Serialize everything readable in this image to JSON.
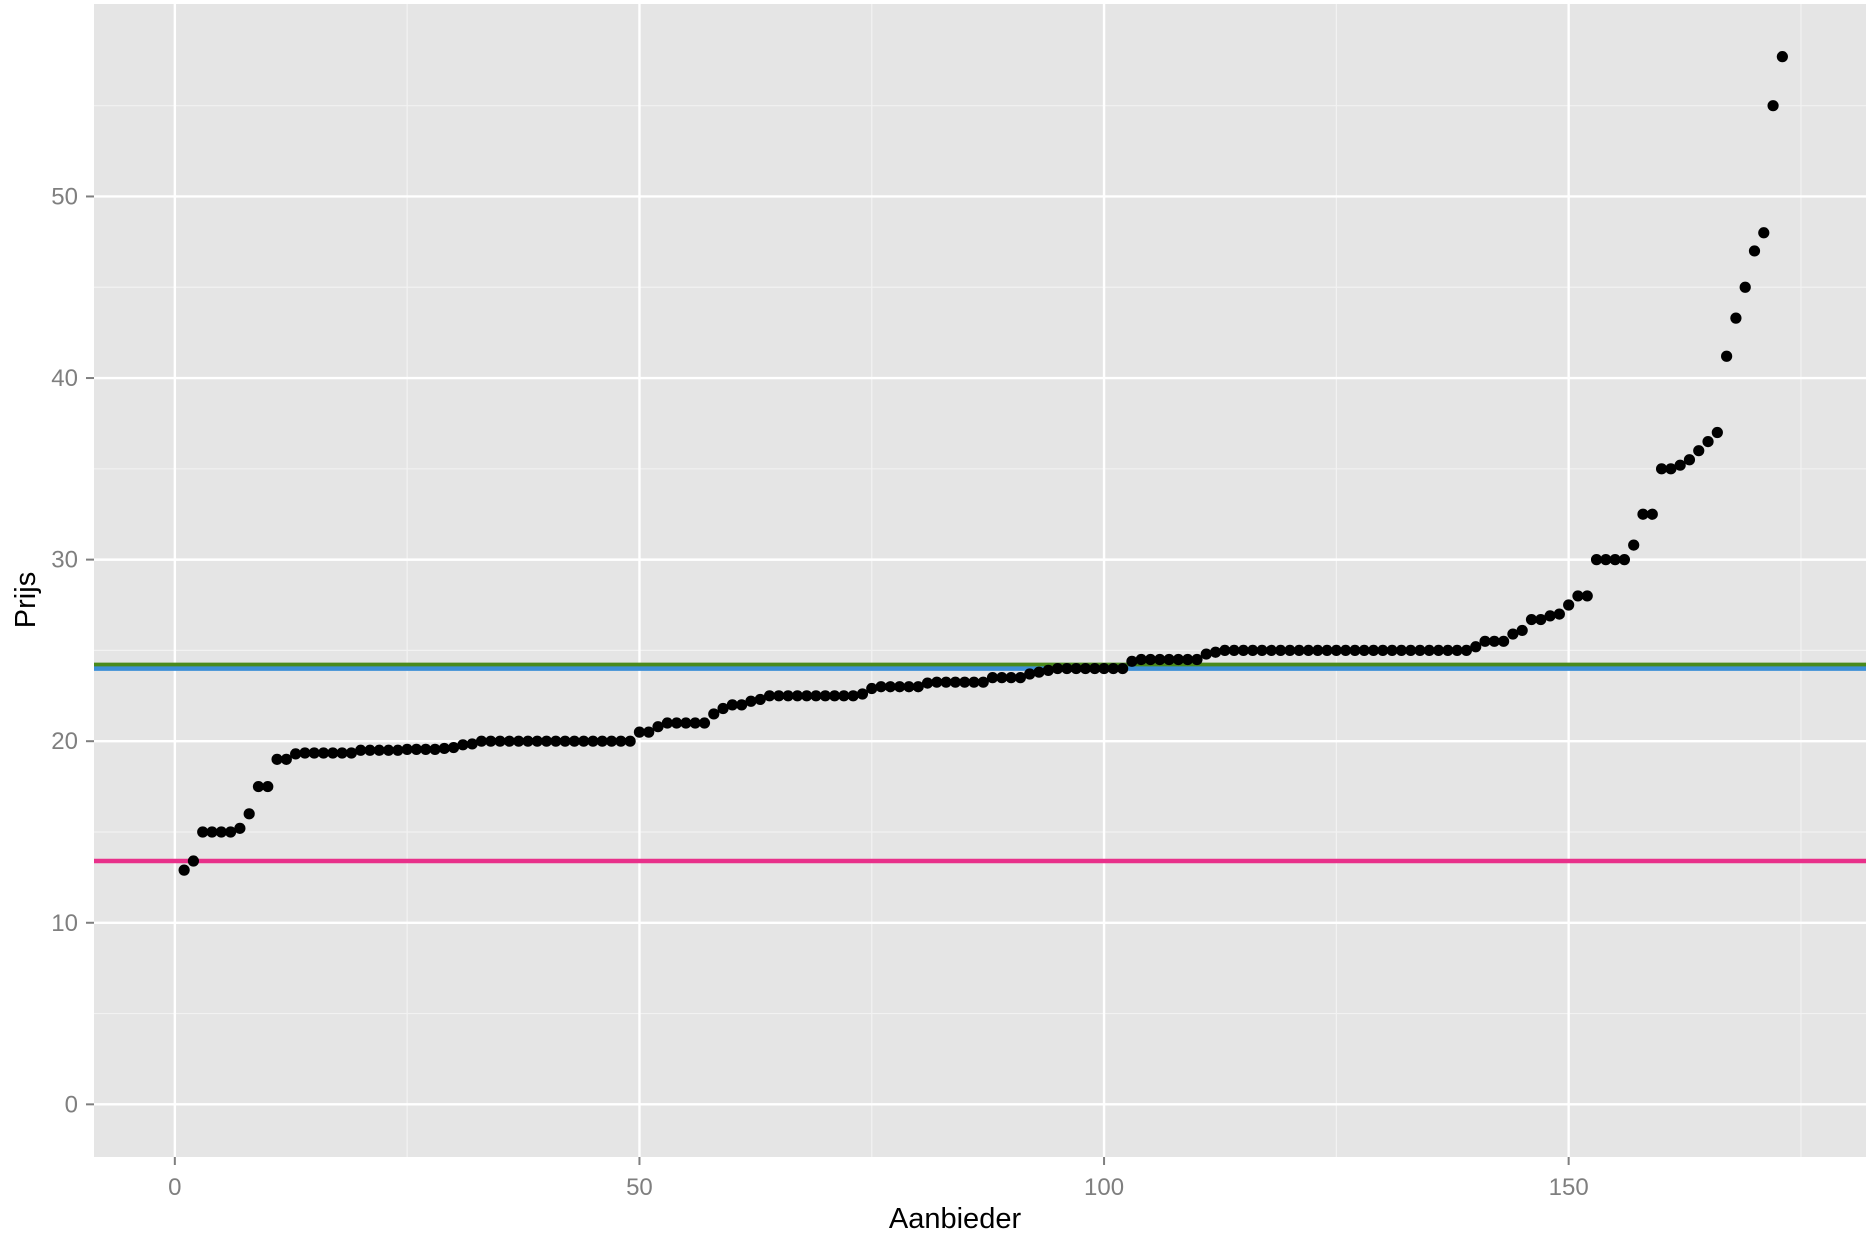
{
  "chart_data": {
    "type": "scatter",
    "title": "",
    "xlabel": "Aanbieder",
    "ylabel": "Prijs",
    "xlim": [
      -8.7,
      182
    ],
    "ylim": [
      -2.9,
      60.6
    ],
    "x_ticks": [
      0,
      50,
      100,
      150
    ],
    "y_ticks": [
      0,
      10,
      20,
      30,
      40,
      50
    ],
    "grid": true,
    "background": "#e5e5e5",
    "grid_color": "#ffffff",
    "point_color": "#000000",
    "hlines": [
      {
        "y": 24.2,
        "color": "#4a8a1c"
      },
      {
        "y": 24.0,
        "color": "#3d8fd6"
      },
      {
        "y": 13.4,
        "color": "#e8308a"
      }
    ],
    "series": [
      {
        "points": [
          [
            1,
            12.9
          ],
          [
            2,
            13.4
          ],
          [
            3,
            15.0
          ],
          [
            4,
            15.0
          ],
          [
            5,
            15.0
          ],
          [
            6,
            15.0
          ],
          [
            7,
            15.2
          ],
          [
            8,
            16.0
          ],
          [
            9,
            17.5
          ],
          [
            10,
            17.5
          ],
          [
            11,
            19.0
          ],
          [
            12,
            19.0
          ],
          [
            13,
            19.3
          ],
          [
            14,
            19.35
          ],
          [
            15,
            19.35
          ],
          [
            16,
            19.35
          ],
          [
            17,
            19.35
          ],
          [
            18,
            19.35
          ],
          [
            19,
            19.35
          ],
          [
            20,
            19.5
          ],
          [
            21,
            19.5
          ],
          [
            22,
            19.5
          ],
          [
            23,
            19.5
          ],
          [
            24,
            19.5
          ],
          [
            25,
            19.55
          ],
          [
            26,
            19.55
          ],
          [
            27,
            19.55
          ],
          [
            28,
            19.55
          ],
          [
            29,
            19.6
          ],
          [
            30,
            19.65
          ],
          [
            31,
            19.8
          ],
          [
            32,
            19.85
          ],
          [
            33,
            20.0
          ],
          [
            34,
            20.0
          ],
          [
            35,
            20.0
          ],
          [
            36,
            20.0
          ],
          [
            37,
            20.0
          ],
          [
            38,
            20.0
          ],
          [
            39,
            20.0
          ],
          [
            40,
            20.0
          ],
          [
            41,
            20.0
          ],
          [
            42,
            20.0
          ],
          [
            43,
            20.0
          ],
          [
            44,
            20.0
          ],
          [
            45,
            20.0
          ],
          [
            46,
            20.0
          ],
          [
            47,
            20.0
          ],
          [
            48,
            20.0
          ],
          [
            49,
            20.0
          ],
          [
            50,
            20.5
          ],
          [
            51,
            20.5
          ],
          [
            52,
            20.8
          ],
          [
            53,
            21.0
          ],
          [
            54,
            21.0
          ],
          [
            55,
            21.0
          ],
          [
            56,
            21.0
          ],
          [
            57,
            21.0
          ],
          [
            58,
            21.5
          ],
          [
            59,
            21.8
          ],
          [
            60,
            22.0
          ],
          [
            61,
            22.0
          ],
          [
            62,
            22.2
          ],
          [
            63,
            22.3
          ],
          [
            64,
            22.5
          ],
          [
            65,
            22.5
          ],
          [
            66,
            22.5
          ],
          [
            67,
            22.5
          ],
          [
            68,
            22.5
          ],
          [
            69,
            22.5
          ],
          [
            70,
            22.5
          ],
          [
            71,
            22.5
          ],
          [
            72,
            22.5
          ],
          [
            73,
            22.5
          ],
          [
            74,
            22.6
          ],
          [
            75,
            22.9
          ],
          [
            76,
            23.0
          ],
          [
            77,
            23.0
          ],
          [
            78,
            23.0
          ],
          [
            79,
            23.0
          ],
          [
            80,
            23.0
          ],
          [
            81,
            23.2
          ],
          [
            82,
            23.25
          ],
          [
            83,
            23.25
          ],
          [
            84,
            23.25
          ],
          [
            85,
            23.25
          ],
          [
            86,
            23.25
          ],
          [
            87,
            23.25
          ],
          [
            88,
            23.5
          ],
          [
            89,
            23.5
          ],
          [
            90,
            23.5
          ],
          [
            91,
            23.5
          ],
          [
            92,
            23.7
          ],
          [
            93,
            23.8
          ],
          [
            94,
            23.9
          ],
          [
            95,
            24.0
          ],
          [
            96,
            24.0
          ],
          [
            97,
            24.0
          ],
          [
            98,
            24.0
          ],
          [
            99,
            24.0
          ],
          [
            100,
            24.0
          ],
          [
            101,
            24.0
          ],
          [
            102,
            24.0
          ],
          [
            103,
            24.4
          ],
          [
            104,
            24.5
          ],
          [
            105,
            24.5
          ],
          [
            106,
            24.5
          ],
          [
            107,
            24.5
          ],
          [
            108,
            24.5
          ],
          [
            109,
            24.5
          ],
          [
            110,
            24.5
          ],
          [
            111,
            24.8
          ],
          [
            112,
            24.9
          ],
          [
            113,
            25.0
          ],
          [
            114,
            25.0
          ],
          [
            115,
            25.0
          ],
          [
            116,
            25.0
          ],
          [
            117,
            25.0
          ],
          [
            118,
            25.0
          ],
          [
            119,
            25.0
          ],
          [
            120,
            25.0
          ],
          [
            121,
            25.0
          ],
          [
            122,
            25.0
          ],
          [
            123,
            25.0
          ],
          [
            124,
            25.0
          ],
          [
            125,
            25.0
          ],
          [
            126,
            25.0
          ],
          [
            127,
            25.0
          ],
          [
            128,
            25.0
          ],
          [
            129,
            25.0
          ],
          [
            130,
            25.0
          ],
          [
            131,
            25.0
          ],
          [
            132,
            25.0
          ],
          [
            133,
            25.0
          ],
          [
            134,
            25.0
          ],
          [
            135,
            25.0
          ],
          [
            136,
            25.0
          ],
          [
            137,
            25.0
          ],
          [
            138,
            25.0
          ],
          [
            139,
            25.0
          ],
          [
            140,
            25.2
          ],
          [
            141,
            25.5
          ],
          [
            142,
            25.5
          ],
          [
            143,
            25.5
          ],
          [
            144,
            25.9
          ],
          [
            145,
            26.1
          ],
          [
            146,
            26.7
          ],
          [
            147,
            26.7
          ],
          [
            148,
            26.9
          ],
          [
            149,
            27.0
          ],
          [
            150,
            27.5
          ],
          [
            151,
            28.0
          ],
          [
            152,
            28.0
          ],
          [
            153,
            30.0
          ],
          [
            154,
            30.0
          ],
          [
            155,
            30.0
          ],
          [
            156,
            30.0
          ],
          [
            157,
            30.8
          ],
          [
            158,
            32.5
          ],
          [
            159,
            32.5
          ],
          [
            160,
            35.0
          ],
          [
            161,
            35.0
          ],
          [
            162,
            35.2
          ],
          [
            163,
            35.5
          ],
          [
            164,
            36.0
          ],
          [
            165,
            36.5
          ],
          [
            166,
            37.0
          ],
          [
            167,
            41.2
          ],
          [
            168,
            43.3
          ],
          [
            169,
            45.0
          ],
          [
            170,
            47.0
          ],
          [
            171,
            48.0
          ],
          [
            172,
            55.0
          ],
          [
            173,
            57.7
          ]
        ]
      }
    ]
  }
}
